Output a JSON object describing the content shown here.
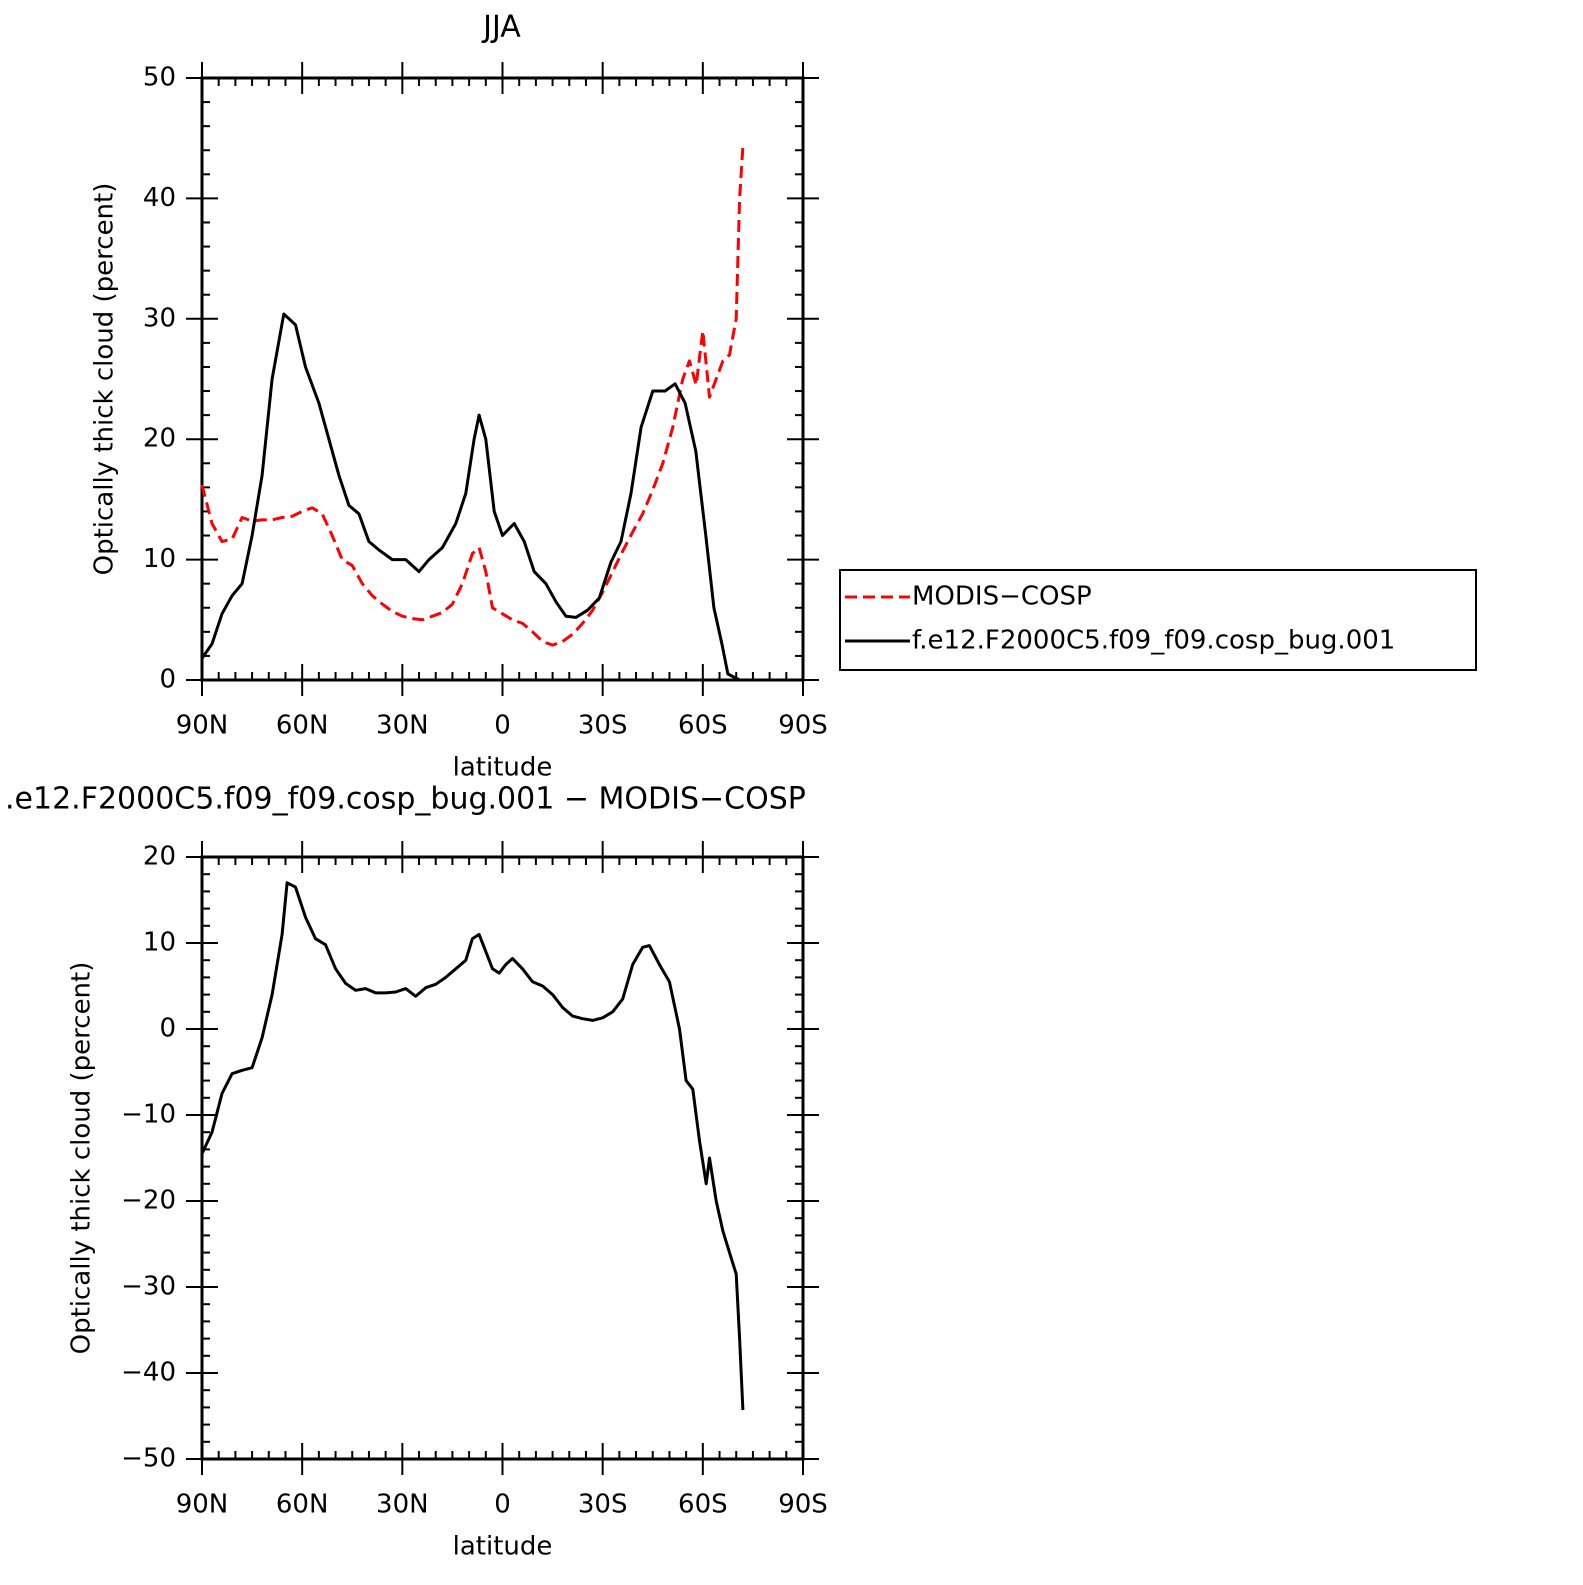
{
  "chart_data": [
    {
      "type": "line",
      "title": "JJA",
      "xlabel": "latitude",
      "ylabel": "Optically thick cloud (percent)",
      "xlim": [
        90,
        -90
      ],
      "ylim": [
        0,
        50
      ],
      "xticks": [
        {
          "value": 90,
          "label": "90N"
        },
        {
          "value": 60,
          "label": "60N"
        },
        {
          "value": 30,
          "label": "30N"
        },
        0,
        {
          "value": -30,
          "label": "30S"
        },
        {
          "value": -60,
          "label": "60S"
        },
        {
          "value": -90,
          "label": "90S"
        }
      ],
      "yticks": [
        0,
        10,
        20,
        30,
        40,
        50
      ],
      "legend": "right",
      "series": [
        {
          "name": "MODIS−COSP",
          "color": "#ff0000",
          "dash": true,
          "x": [
            90,
            87,
            84,
            81,
            78,
            75,
            72,
            69,
            66,
            63,
            60,
            57,
            54,
            51,
            48,
            45,
            42,
            39,
            36,
            33,
            30,
            27,
            24,
            21,
            18,
            15,
            12,
            9,
            7,
            5,
            3,
            0,
            -3,
            -6,
            -9,
            -12,
            -15,
            -18,
            -21,
            -24,
            -27,
            -30,
            -33,
            -36,
            -39,
            -42,
            -45,
            -48,
            -51,
            -54,
            -56,
            -58,
            -60,
            -62,
            -64,
            -66,
            -68,
            -70,
            -71,
            -72
          ],
          "values": [
            16.2,
            13,
            11.5,
            11.7,
            13.5,
            13.2,
            13.3,
            13.3,
            13.5,
            13.6,
            14,
            14.3,
            13.8,
            12,
            10,
            9.5,
            8,
            7,
            6.3,
            5.7,
            5.3,
            5.1,
            5,
            5.3,
            5.6,
            6.3,
            8,
            10.5,
            11,
            9,
            6,
            5.5,
            5,
            4.7,
            4,
            3.2,
            2.9,
            3.2,
            3.8,
            4.7,
            5.8,
            7.3,
            9,
            10.7,
            12.3,
            13.8,
            15.8,
            18,
            21,
            25,
            26.5,
            24.5,
            29,
            23.5,
            25,
            26.5,
            27,
            30,
            40,
            44.3
          ]
        },
        {
          "name": "f.e12.F2000C5.f09_f09.cosp_bug.001",
          "color": "#000000",
          "dash": false,
          "x": [
            90,
            87,
            84,
            81,
            78,
            75,
            72,
            69,
            65.5,
            62,
            59,
            55,
            52,
            49,
            46,
            43,
            40,
            37,
            33,
            29,
            25,
            22,
            18,
            14,
            11,
            8.5,
            7,
            5,
            2.5,
            0,
            -3.5,
            -6.5,
            -9.5,
            -13,
            -16,
            -19,
            -22,
            -25.5,
            -29,
            -32.5,
            -35.5,
            -38.5,
            -41.5,
            -45,
            -48.7,
            -51.7,
            -54.7,
            -57.9,
            -60.9,
            -63.3,
            -65.7,
            -67.5,
            -71,
            -79
          ],
          "values": [
            1.8,
            3,
            5.5,
            7,
            8,
            12,
            17,
            25,
            30.4,
            29.5,
            26,
            23,
            20,
            17,
            14.5,
            13.8,
            11.5,
            10.8,
            10,
            10,
            9,
            10,
            11,
            13,
            15.5,
            20,
            22,
            20,
            14,
            12,
            13,
            11.5,
            9,
            8,
            6.5,
            5.3,
            5.2,
            5.8,
            6.8,
            9.8,
            11.5,
            15.5,
            21,
            24,
            24,
            24.6,
            23,
            19,
            12,
            6,
            3,
            0.5,
            0,
            0
          ]
        }
      ]
    },
    {
      "type": "line",
      "title": ".e12.F2000C5.f09_f09.cosp_bug.001 − MODIS−COSP",
      "xlabel": "latitude",
      "ylabel": "Optically thick cloud (percent)",
      "xlim": [
        90,
        -90
      ],
      "ylim": [
        -50,
        20
      ],
      "xticks": [
        {
          "value": 90,
          "label": "90N"
        },
        {
          "value": 60,
          "label": "60N"
        },
        {
          "value": 30,
          "label": "30N"
        },
        0,
        {
          "value": -30,
          "label": "30S"
        },
        {
          "value": -60,
          "label": "60S"
        },
        {
          "value": -90,
          "label": "90S"
        }
      ],
      "yticks": [
        {
          "value": -50,
          "label": "−50"
        },
        {
          "value": -40,
          "label": "−40"
        },
        {
          "value": -30,
          "label": "−30"
        },
        {
          "value": -20,
          "label": "−20"
        },
        {
          "value": -10,
          "label": "−10"
        },
        0,
        10,
        20
      ],
      "series": [
        {
          "color": "#000000",
          "dash": false,
          "x": [
            90,
            87,
            84,
            81,
            78,
            75,
            72,
            69,
            66,
            64.5,
            62,
            59,
            56,
            53,
            50,
            47,
            44,
            41,
            38,
            35,
            32,
            29,
            26,
            23,
            20,
            17,
            14,
            11,
            9,
            7,
            5,
            3,
            1,
            -1,
            -3,
            -6,
            -9,
            -12,
            -15,
            -18,
            -21,
            -24,
            -27,
            -30,
            -33,
            -36,
            -39,
            -42,
            -44,
            -47,
            -50,
            -53,
            -55,
            -57,
            -59,
            -61,
            -62,
            -64,
            -66,
            -68,
            -70,
            -71,
            -72
          ],
          "values": [
            -14.5,
            -12,
            -7.5,
            -5.2,
            -4.8,
            -4.5,
            -1,
            4,
            11,
            17,
            16.5,
            13,
            10.5,
            9.8,
            7,
            5.3,
            4.5,
            4.7,
            4.2,
            4.2,
            4.3,
            4.7,
            3.8,
            4.8,
            5.2,
            6,
            7,
            8,
            10.5,
            11,
            9,
            7,
            6.5,
            7.5,
            8.2,
            7,
            5.5,
            5,
            4,
            2.5,
            1.5,
            1.2,
            1,
            1.3,
            2,
            3.5,
            7.5,
            9.5,
            9.7,
            7.5,
            5.5,
            0,
            -6,
            -7,
            -13,
            -18,
            -15,
            -20,
            -23.5,
            -26,
            -28.5,
            -36,
            -44.3
          ]
        }
      ]
    }
  ]
}
